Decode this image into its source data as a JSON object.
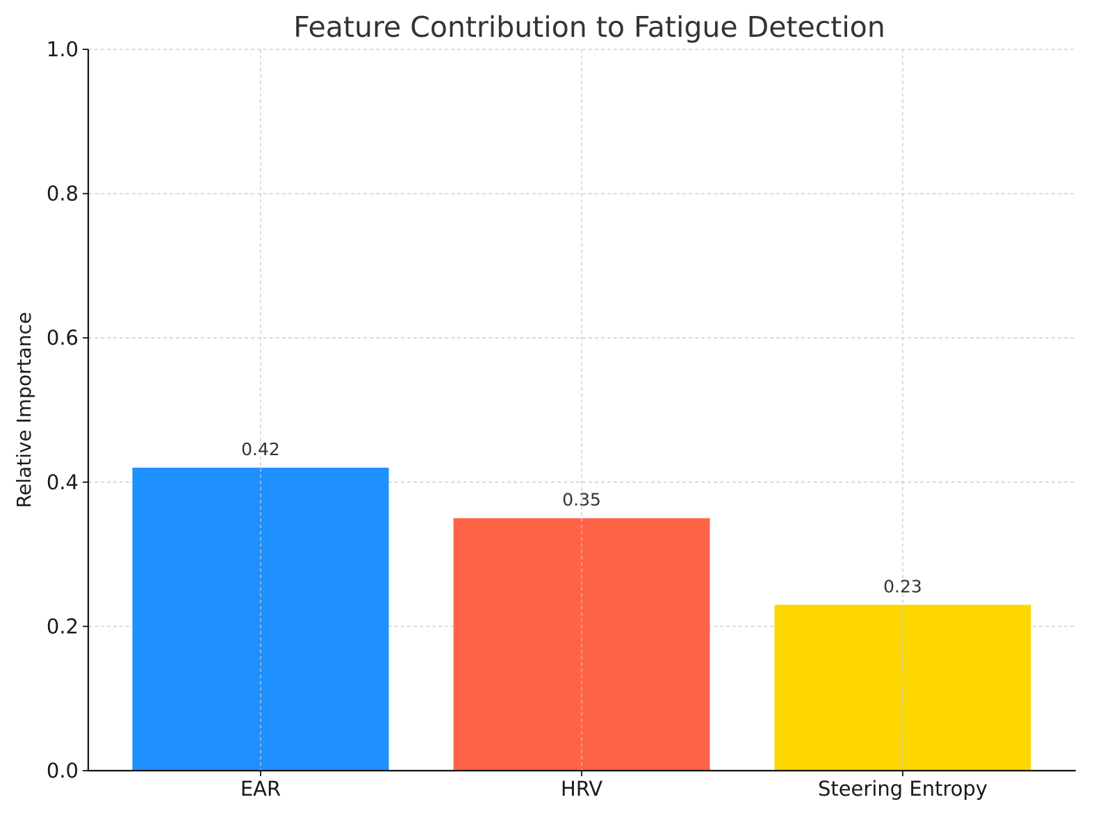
{
  "chart_data": {
    "type": "bar",
    "title": "Feature Contribution to Fatigue Detection",
    "xlabel": "",
    "ylabel": "Relative Importance",
    "categories": [
      "EAR",
      "HRV",
      "Steering Entropy"
    ],
    "values": [
      0.42,
      0.35,
      0.23
    ],
    "value_labels": [
      "0.42",
      "0.35",
      "0.23"
    ],
    "colors": [
      "#1E90FF",
      "#FF6347",
      "#FFD700"
    ],
    "ylim": [
      0,
      1.0
    ],
    "yticks": [
      0.0,
      0.2,
      0.4,
      0.6,
      0.8,
      1.0
    ],
    "ytick_labels": [
      "0.0",
      "0.2",
      "0.4",
      "0.6",
      "0.8",
      "1.0"
    ],
    "grid": true,
    "legend": "none"
  }
}
